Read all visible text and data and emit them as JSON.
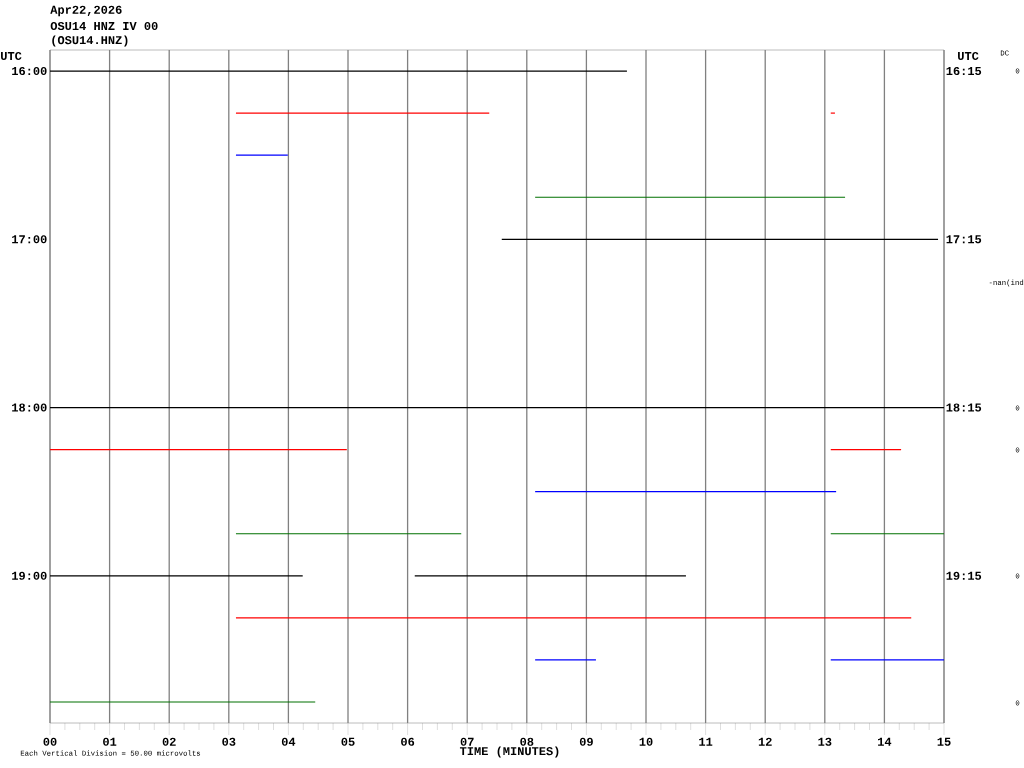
{
  "chart_data": {
    "type": "line",
    "title": "Apr22,2026",
    "subtitle": "OSU14 HNZ IV 00",
    "xlabel": "TIME (MINUTES)",
    "ylabel": "UTC",
    "y2label": "UTC",
    "annotations": [
      "(OSU14.HNZ)",
      "DC",
      "Each Vertical Division =   50.00 microvolts",
      "0",
      "-nan(ind",
      "0",
      "0",
      "0",
      "0"
    ],
    "xlim": [
      0,
      15
    ],
    "xticks": [
      {
        "value": 0,
        "label": "00"
      },
      {
        "value": 1,
        "label": "01"
      },
      {
        "value": 2,
        "label": "02"
      },
      {
        "value": 3,
        "label": "03"
      },
      {
        "value": 4,
        "label": "04"
      },
      {
        "value": 5,
        "label": "05"
      },
      {
        "value": 6,
        "label": "06"
      },
      {
        "value": 7,
        "label": "07"
      },
      {
        "value": 8,
        "label": "08"
      },
      {
        "value": 9,
        "label": "09"
      },
      10,
      11,
      12,
      13,
      14,
      15
    ],
    "ylim": [
      19.875,
      15.875
    ],
    "yticks": [
      {
        "value": 16,
        "label": "16:00"
      },
      {
        "value": 17,
        "label": "17:00"
      },
      {
        "value": 18,
        "label": "18:00"
      },
      {
        "value": 19,
        "label": "19:00"
      }
    ],
    "y2lim": [
      20.125,
      16.125
    ],
    "y2ticks": [
      {
        "value": 16.25,
        "label": "16:15"
      },
      {
        "value": 17.25,
        "label": "17:15"
      },
      {
        "value": 18.25,
        "label": "18:15"
      },
      {
        "value": 19.25,
        "label": "19:15"
      }
    ],
    "grid": "x",
    "marker": "none",
    "line_style": "solid",
    "series": [
      {
        "color": "#000000",
        "x": [
          0,
          9.68
        ],
        "values": [
          16,
          16
        ]
      },
      {
        "color": "#ff0000",
        "x": [
          3.12,
          7.37
        ],
        "values": [
          16.25,
          16.25
        ]
      },
      {
        "color": "#ff0000",
        "x": [
          13.1,
          13.17
        ],
        "values": [
          16.25,
          16.25
        ]
      },
      {
        "color": "#0000ff",
        "x": [
          3.12,
          3.99
        ],
        "values": [
          16.5,
          16.5
        ]
      },
      {
        "color": "#007000",
        "x": [
          8.14,
          13.34
        ],
        "values": [
          16.75,
          16.75
        ]
      },
      {
        "color": "#000000",
        "x": [
          7.58,
          14.9
        ],
        "values": [
          17,
          17
        ]
      },
      {
        "color": "#000000",
        "x": [
          0,
          15
        ],
        "values": [
          18,
          18
        ]
      },
      {
        "color": "#ff0000",
        "x": [
          0,
          4.98
        ],
        "values": [
          18.25,
          18.25
        ]
      },
      {
        "color": "#ff0000",
        "x": [
          13.1,
          14.28
        ],
        "values": [
          18.25,
          18.25
        ]
      },
      {
        "color": "#0000ff",
        "x": [
          8.14,
          13.19
        ],
        "values": [
          18.5,
          18.5
        ]
      },
      {
        "color": "#007000",
        "x": [
          3.12,
          6.9
        ],
        "values": [
          18.75,
          18.75
        ]
      },
      {
        "color": "#007000",
        "x": [
          13.1,
          15
        ],
        "values": [
          18.75,
          18.75
        ]
      },
      {
        "color": "#000000",
        "x": [
          0,
          4.24
        ],
        "values": [
          19,
          19
        ]
      },
      {
        "color": "#000000",
        "x": [
          6.12,
          10.67
        ],
        "values": [
          19,
          19
        ]
      },
      {
        "color": "#ff0000",
        "x": [
          3.12,
          14.45
        ],
        "values": [
          19.25,
          19.25
        ]
      },
      {
        "color": "#0000ff",
        "x": [
          8.14,
          9.16
        ],
        "values": [
          19.5,
          19.5
        ]
      },
      {
        "color": "#0000ff",
        "x": [
          13.1,
          15
        ],
        "values": [
          19.5,
          19.5
        ]
      },
      {
        "color": "#007000",
        "x": [
          0,
          4.45
        ],
        "values": [
          19.75,
          19.75
        ]
      }
    ]
  }
}
